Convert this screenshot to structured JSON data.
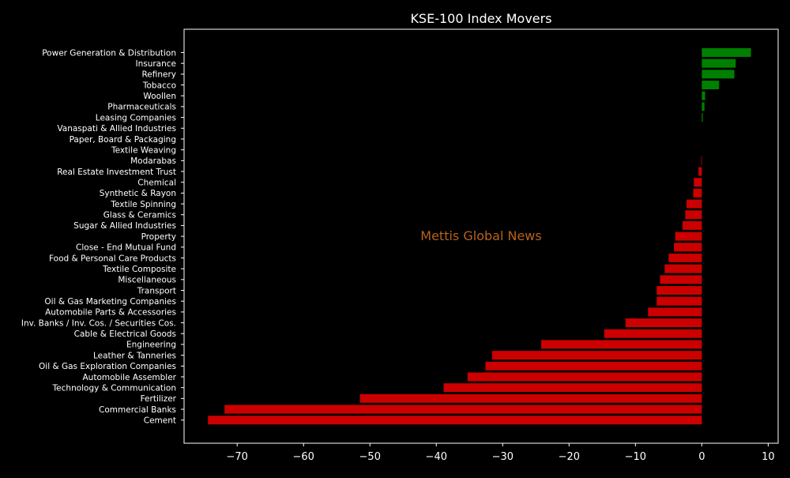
{
  "chart_data": {
    "type": "bar",
    "orientation": "horizontal",
    "title": "KSE-100 Index Movers",
    "xlabel": "",
    "ylabel": "",
    "xlim": [
      -78,
      11.5
    ],
    "xticks": [
      -70,
      -60,
      -50,
      -40,
      -30,
      -20,
      -10,
      0,
      10
    ],
    "grid": false,
    "legend": "none",
    "categories": [
      "Power Generation & Distribution",
      "Insurance",
      "Refinery",
      "Tobacco",
      "Woollen",
      "Pharmaceuticals",
      "Leasing Companies",
      "Vanaspati & Allied Industries",
      "Paper, Board & Packaging",
      "Textile Weaving",
      "Modarabas",
      "Real Estate Investment Trust",
      "Chemical",
      "Synthetic & Rayon",
      "Textile Spinning",
      "Glass & Ceramics",
      "Sugar & Allied Industries",
      "Property",
      "Close - End Mutual Fund",
      "Food & Personal Care Products",
      "Textile Composite",
      "Miscellaneous",
      "Transport",
      "Oil & Gas Marketing Companies",
      "Automobile Parts & Accessories",
      "Inv. Banks / Inv. Cos. / Securities Cos.",
      "Cable & Electrical Goods",
      "Engineering",
      "Leather & Tanneries",
      "Oil & Gas Exploration Companies",
      "Automobile Assembler",
      "Technology & Communication",
      "Fertilizer",
      "Commercial Banks",
      "Cement"
    ],
    "values": [
      7.4,
      5.1,
      4.9,
      2.6,
      0.5,
      0.4,
      0.15,
      0.0,
      0.0,
      0.0,
      -0.1,
      -0.5,
      -1.2,
      -1.3,
      -2.3,
      -2.5,
      -2.9,
      -4.0,
      -4.2,
      -5.0,
      -5.6,
      -6.3,
      -6.8,
      -6.8,
      -8.1,
      -11.5,
      -14.7,
      -24.2,
      -31.6,
      -32.6,
      -35.3,
      -38.9,
      -51.5,
      -71.9,
      -74.4
    ],
    "colors": {
      "positive": "#008000",
      "negative": "#cc0000",
      "background": "#000000",
      "axes": "#ffffff"
    }
  },
  "watermark": {
    "text": "Mettis Global News",
    "color": "#b8621b"
  }
}
